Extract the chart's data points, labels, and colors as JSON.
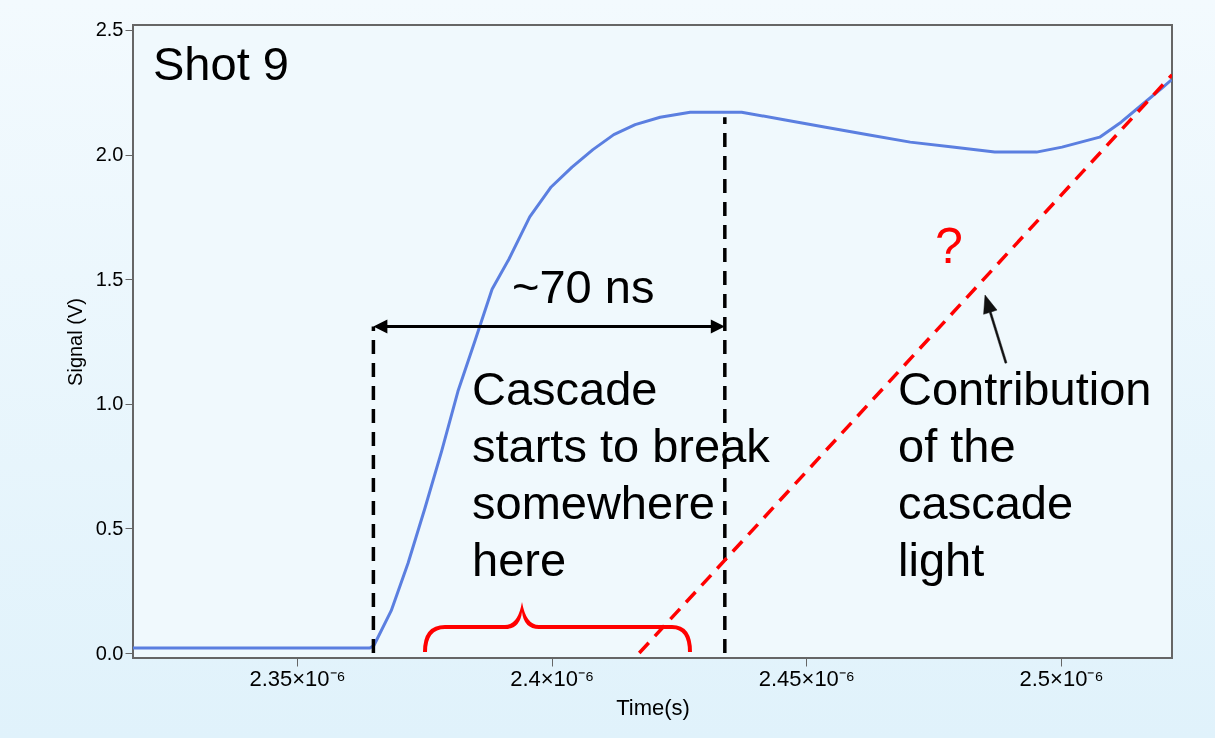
{
  "chart_data": {
    "type": "line",
    "xlabel": "Time(s)",
    "ylabel": "Signal (V)",
    "xlim": [
      2.3178e-06,
      2.5218e-06
    ],
    "ylim": [
      -0.02,
      2.52
    ],
    "xticks": [
      {
        "value": 2.35e-06,
        "label": "2.35×10⁻⁶"
      },
      {
        "value": 2.4e-06,
        "label": "2.4×10⁻⁶"
      },
      {
        "value": 2.45e-06,
        "label": "2.45×10⁻⁶"
      },
      {
        "value": 2.5e-06,
        "label": "2.5×10⁻⁶"
      }
    ],
    "yticks": [
      {
        "value": 0,
        "label": "0.0"
      },
      0.5,
      {
        "value": 1,
        "label": "1.0"
      },
      1.5,
      {
        "value": 2,
        "label": "2.0"
      },
      2.5
    ],
    "grid": false,
    "marker": "none",
    "annotations": [
      "Shot 9",
      "~70 ns",
      "Cascade starts to break somewhere here",
      "?",
      "Contribution of the cascade light"
    ],
    "series": [
      {
        "color": "#5b7fe0",
        "line_style": "solid",
        "x": [
          2.3178e-06,
          2.331e-06,
          2.3427e-06,
          2.3545e-06,
          2.3643e-06,
          2.3651e-06,
          2.3685e-06,
          2.3718e-06,
          2.3751e-06,
          2.3784e-06,
          2.3816e-06,
          2.3849e-06,
          2.3883e-06,
          2.3916e-06,
          2.3957e-06,
          2.3999e-06,
          2.404e-06,
          2.4081e-06,
          2.4122e-06,
          2.4164e-06,
          2.4213e-06,
          2.4272e-06,
          2.4338e-06,
          2.4373e-06,
          2.4456e-06,
          2.4538e-06,
          2.4621e-06,
          2.4704e-06,
          2.4787e-06,
          2.487e-06,
          2.4952e-06,
          2.5002e-06,
          2.5076e-06,
          2.5118e-06,
          2.5159e-06,
          2.52e-06,
          2.5217e-06
        ],
        "values": [
          0.02,
          0.02,
          0.02,
          0.02,
          0.02,
          0.03,
          0.17,
          0.36,
          0.58,
          0.81,
          1.05,
          1.25,
          1.46,
          1.58,
          1.75,
          1.87,
          1.95,
          2.02,
          2.08,
          2.12,
          2.15,
          2.17,
          2.17,
          2.17,
          2.14,
          2.11,
          2.08,
          2.05,
          2.03,
          2.01,
          2.01,
          2.03,
          2.07,
          2.13,
          2.2,
          2.27,
          2.3
        ]
      },
      {
        "color": "#000000",
        "line_style": "dashed",
        "x": [
          2.365e-06,
          2.365e-06
        ],
        "values": [
          0,
          1.31
        ]
      },
      {
        "color": "#000000",
        "line_style": "dashed",
        "x": [
          2.434e-06,
          2.434e-06
        ],
        "values": [
          0,
          2.15
        ]
      },
      {
        "color": "#ff0000",
        "line_style": "dashed",
        "x": [
          2.4172e-06,
          2.5218e-06
        ],
        "values": [
          0,
          2.32
        ]
      }
    ]
  }
}
